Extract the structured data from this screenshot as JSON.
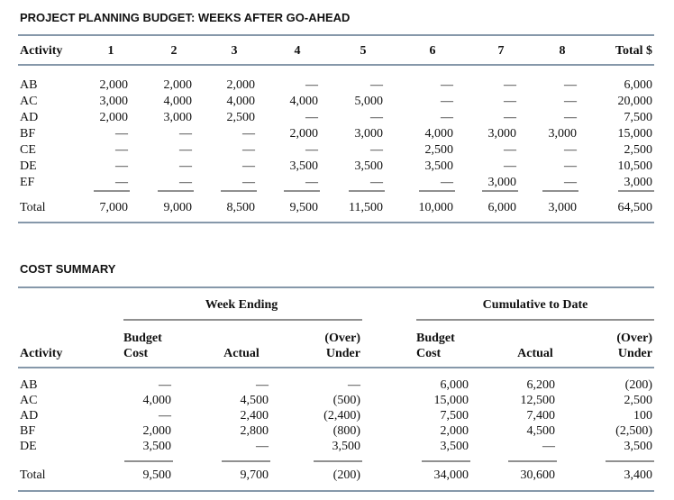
{
  "budget": {
    "title": "PROJECT PLANNING BUDGET: WEEKS AFTER GO-AHEAD",
    "header": [
      "Activity",
      "1",
      "2",
      "3",
      "4",
      "5",
      "6",
      "7",
      "8",
      "Total $"
    ],
    "rows": [
      [
        "AB",
        "2,000",
        "2,000",
        "2,000",
        "—",
        "—",
        "—",
        "—",
        "—",
        "6,000"
      ],
      [
        "AC",
        "3,000",
        "4,000",
        "4,000",
        "4,000",
        "5,000",
        "—",
        "—",
        "—",
        "20,000"
      ],
      [
        "AD",
        "2,000",
        "3,000",
        "2,500",
        "—",
        "—",
        "—",
        "—",
        "—",
        "7,500"
      ],
      [
        "BF",
        "—",
        "—",
        "—",
        "2,000",
        "3,000",
        "4,000",
        "3,000",
        "3,000",
        "15,000"
      ],
      [
        "CE",
        "—",
        "—",
        "—",
        "—",
        "—",
        "2,500",
        "—",
        "—",
        "2,500"
      ],
      [
        "DE",
        "—",
        "—",
        "—",
        "3,500",
        "3,500",
        "3,500",
        "—",
        "—",
        "10,500"
      ],
      [
        "EF",
        "—",
        "—",
        "—",
        "—",
        "—",
        "—",
        "3,000",
        "—",
        "3,000"
      ]
    ],
    "total": [
      "Total",
      "7,000",
      "9,000",
      "8,500",
      "9,500",
      "11,500",
      "10,000",
      "6,000",
      "3,000",
      "64,500"
    ]
  },
  "cost_summary": {
    "title": "COST SUMMARY",
    "groups": [
      "Week Ending",
      "Cumulative to Date"
    ],
    "header": [
      [
        "Activity"
      ],
      [
        "Budget",
        "Cost"
      ],
      [
        "Actual"
      ],
      [
        "(Over)",
        "Under"
      ],
      [
        "Budget",
        "Cost"
      ],
      [
        "Actual"
      ],
      [
        "(Over)",
        "Under"
      ]
    ],
    "rows": [
      [
        "AB",
        "—",
        "—",
        "—",
        "6,000",
        "6,200",
        "(200)"
      ],
      [
        "AC",
        "4,000",
        "4,500",
        "(500)",
        "15,000",
        "12,500",
        "2,500"
      ],
      [
        "AD",
        "—",
        "2,400",
        "(2,400)",
        "7,500",
        "7,400",
        "100"
      ],
      [
        "BF",
        "2,000",
        "2,800",
        "(800)",
        "2,000",
        "4,500",
        "(2,500)"
      ],
      [
        "DE",
        "3,500",
        "—",
        "3,500",
        "3,500",
        "—",
        "3,500"
      ]
    ],
    "total": [
      "Total",
      "9,500",
      "9,700",
      "(200)",
      "34,000",
      "30,600",
      "3,400"
    ]
  }
}
